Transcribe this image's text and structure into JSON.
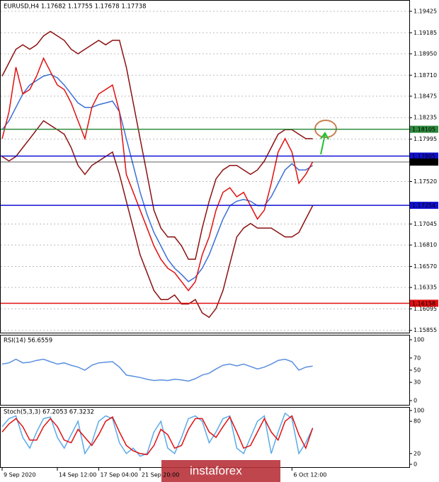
{
  "chart_data": [
    {
      "type": "line",
      "title": "EURUSD,H4  1.17682 1.17755 1.17678 1.17738",
      "xlim": [
        0,
        59
      ],
      "ylim": [
        1.15829,
        1.19512
      ],
      "yticks": [
        1.19425,
        1.19185,
        {
          "value": 1.1895,
          "label": "1.18950"
        },
        {
          "value": 1.1871,
          "label": "1.18710"
        },
        1.18475,
        1.18235,
        1.17995,
        {
          "value": 1.1752,
          "label": "1.17520"
        },
        1.17045,
        {
          "value": 1.1681,
          "label": "1.16810"
        },
        {
          "value": 1.1657,
          "label": "1.16570"
        },
        1.16335,
        1.16095,
        1.15855
      ],
      "levels": [
        1.18105,
        1.17805,
        1.17738,
        1.17254,
        1.16158
      ],
      "level_colors": [
        "#2e8b3e",
        "#1010d0",
        "#000000",
        "#1010d0",
        "#e01010"
      ],
      "grid": true,
      "series": [
        {
          "color": "#8b1010",
          "values": [
            1.187,
            1.1885,
            1.19,
            1.1905,
            1.19,
            1.1905,
            1.1915,
            1.192,
            1.1915,
            1.191,
            1.19,
            1.1895,
            1.19,
            1.1905,
            1.191,
            1.1905,
            1.191,
            1.191,
            1.188,
            1.184,
            1.18,
            1.176,
            1.172,
            1.17,
            1.169,
            1.169,
            1.168,
            1.1665,
            1.1665,
            1.17,
            1.173,
            1.1755,
            1.1765,
            1.177,
            1.177,
            1.1765,
            1.176,
            1.1765,
            1.1775,
            1.179,
            1.1805,
            1.181,
            1.181,
            1.1805,
            1.18,
            1.18
          ]
        },
        {
          "color": "#8b1010",
          "values": [
            1.178,
            1.1775,
            1.178,
            1.179,
            1.18,
            1.181,
            1.182,
            1.1815,
            1.181,
            1.1805,
            1.179,
            1.177,
            1.176,
            1.177,
            1.1775,
            1.178,
            1.1785,
            1.176,
            1.173,
            1.17,
            1.167,
            1.165,
            1.163,
            1.162,
            1.162,
            1.1625,
            1.1615,
            1.1615,
            1.162,
            1.1605,
            1.16,
            1.161,
            1.163,
            1.166,
            1.169,
            1.17,
            1.1705,
            1.17,
            1.17,
            1.17,
            1.1695,
            1.169,
            1.169,
            1.1695,
            1.171,
            1.1725
          ]
        },
        {
          "color": "#3a6fd8",
          "values": [
            1.181,
            1.182,
            1.1835,
            1.185,
            1.186,
            1.1865,
            1.187,
            1.1872,
            1.1868,
            1.186,
            1.185,
            1.184,
            1.1835,
            1.1835,
            1.1838,
            1.184,
            1.1842,
            1.183,
            1.18,
            1.177,
            1.174,
            1.1715,
            1.1695,
            1.168,
            1.1665,
            1.1655,
            1.1648,
            1.164,
            1.1645,
            1.1655,
            1.167,
            1.169,
            1.171,
            1.1725,
            1.173,
            1.1732,
            1.173,
            1.1725,
            1.1725,
            1.1735,
            1.175,
            1.1765,
            1.1772,
            1.1765,
            1.1765,
            1.177
          ]
        },
        {
          "color": "#e01010",
          "values": [
            1.18,
            1.183,
            1.188,
            1.185,
            1.1855,
            1.187,
            1.189,
            1.1875,
            1.186,
            1.1855,
            1.184,
            1.182,
            1.18,
            1.1835,
            1.185,
            1.1855,
            1.186,
            1.183,
            1.176,
            1.174,
            1.172,
            1.17,
            1.168,
            1.1665,
            1.1655,
            1.165,
            1.164,
            1.163,
            1.164,
            1.167,
            1.169,
            1.172,
            1.174,
            1.1745,
            1.1735,
            1.174,
            1.1725,
            1.171,
            1.172,
            1.175,
            1.1785,
            1.18,
            1.1785,
            1.175,
            1.176,
            1.1774
          ]
        }
      ]
    },
    {
      "type": "line",
      "title": "RSI(14) 56.6559",
      "xlim": [
        0,
        59
      ],
      "ylim": [
        0,
        100
      ],
      "yticks": [
        100,
        70,
        50,
        30,
        0
      ],
      "series": [
        {
          "color": "#5a8fe0",
          "values": [
            60,
            62,
            68,
            62,
            63,
            66,
            68,
            64,
            60,
            62,
            58,
            55,
            50,
            58,
            62,
            63,
            64,
            55,
            42,
            40,
            38,
            35,
            33,
            34,
            33,
            35,
            34,
            32,
            36,
            42,
            45,
            52,
            58,
            60,
            57,
            60,
            56,
            52,
            55,
            60,
            66,
            68,
            64,
            50,
            55,
            56.6559
          ]
        }
      ]
    },
    {
      "type": "line",
      "title": "Stoch(5,3,3) 67.2053 67.3232",
      "xlim": [
        0,
        59
      ],
      "ylim": [
        0,
        100
      ],
      "yticks": [
        100,
        80,
        20,
        0
      ],
      "xticks": [
        {
          "value": 0,
          "label": "9 Sep 2020"
        },
        {
          "value": 8,
          "label": "14 Sep 12:00"
        },
        {
          "value": 14,
          "label": "17 Sep 04:00"
        },
        {
          "value": 20,
          "label": "21 Sep 20:00"
        },
        {
          "value": 42,
          "label": "6 Oct 12:00"
        }
      ],
      "series": [
        {
          "color": "#5aaae8",
          "values": [
            70,
            85,
            90,
            50,
            30,
            60,
            85,
            88,
            50,
            30,
            55,
            80,
            20,
            40,
            80,
            90,
            85,
            40,
            20,
            30,
            15,
            20,
            60,
            80,
            30,
            20,
            50,
            85,
            90,
            80,
            40,
            60,
            85,
            90,
            30,
            20,
            50,
            80,
            90,
            20,
            60,
            95,
            85,
            20,
            40,
            67.2053
          ]
        },
        {
          "color": "#e01010",
          "values": [
            60,
            75,
            85,
            70,
            45,
            45,
            70,
            85,
            70,
            45,
            40,
            65,
            50,
            35,
            55,
            80,
            88,
            60,
            35,
            25,
            20,
            18,
            35,
            65,
            55,
            30,
            35,
            65,
            85,
            85,
            60,
            50,
            70,
            88,
            60,
            30,
            35,
            60,
            85,
            60,
            45,
            80,
            90,
            55,
            30,
            67.3232
          ]
        }
      ]
    }
  ],
  "watermark": "instaforex"
}
